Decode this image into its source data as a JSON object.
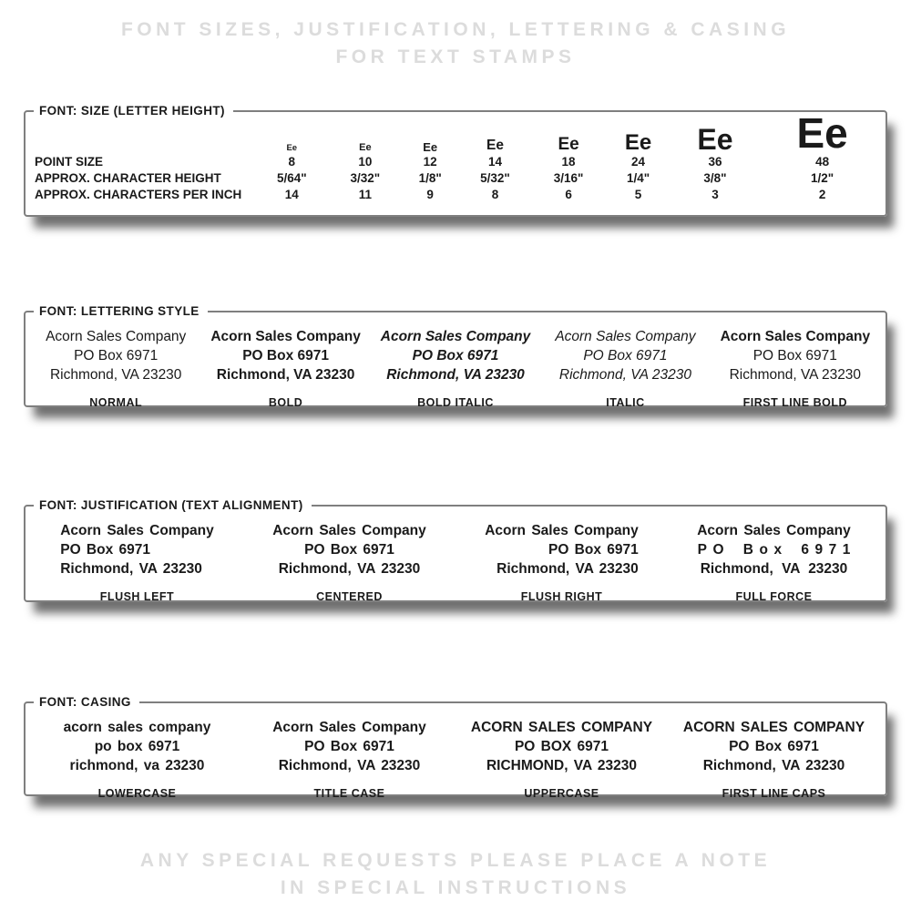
{
  "colors": {
    "muted_text": "#dcdcdc",
    "panel_border": "#7f7f7f",
    "text": "#1a1a1a",
    "shadow": "rgba(25,25,25,0.62)"
  },
  "header": {
    "line1": "FONT SIZES, JUSTIFICATION, LETTERING & CASING",
    "line2": "FOR TEXT STAMPS"
  },
  "footer": {
    "line1": "ANY SPECIAL REQUESTS PLEASE PLACE A NOTE",
    "line2": "IN SPECIAL INSTRUCTIONS"
  },
  "size_panel": {
    "legend": "FONT: SIZE (LETTER HEIGHT)",
    "sample_glyphs": "Ee",
    "row_labels": [
      "POINT SIZE",
      "APPROX. CHARACTER HEIGHT",
      "APPROX. CHARACTERS PER INCH"
    ],
    "columns": [
      {
        "point_size": "8",
        "char_height": "5/64\"",
        "chars_per_inch": "14"
      },
      {
        "point_size": "10",
        "char_height": "3/32\"",
        "chars_per_inch": "11"
      },
      {
        "point_size": "12",
        "char_height": "1/8\"",
        "chars_per_inch": "9"
      },
      {
        "point_size": "14",
        "char_height": "5/32\"",
        "chars_per_inch": "8"
      },
      {
        "point_size": "18",
        "char_height": "3/16\"",
        "chars_per_inch": "6"
      },
      {
        "point_size": "24",
        "char_height": "1/4\"",
        "chars_per_inch": "5"
      },
      {
        "point_size": "36",
        "char_height": "3/8\"",
        "chars_per_inch": "3"
      },
      {
        "point_size": "48",
        "char_height": "1/2\"",
        "chars_per_inch": "2"
      }
    ]
  },
  "lettering_panel": {
    "legend": "FONT: LETTERING STYLE",
    "address": [
      "Acorn Sales Company",
      "PO Box 6971",
      "Richmond, VA 23230"
    ],
    "styles": [
      {
        "label": "NORMAL"
      },
      {
        "label": "BOLD"
      },
      {
        "label": "BOLD ITALIC"
      },
      {
        "label": "ITALIC"
      },
      {
        "label": "FIRST LINE BOLD"
      }
    ]
  },
  "justification_panel": {
    "legend": "FONT: JUSTIFICATION (TEXT ALIGNMENT)",
    "address": [
      "Acorn Sales Company",
      "PO Box 6971",
      "Richmond, VA 23230"
    ],
    "modes": [
      {
        "label": "FLUSH LEFT"
      },
      {
        "label": "CENTERED"
      },
      {
        "label": "FLUSH RIGHT"
      },
      {
        "label": "FULL FORCE"
      }
    ]
  },
  "casing_panel": {
    "legend": "FONT: CASING",
    "samples": [
      {
        "label": "LOWERCASE",
        "lines": [
          "acorn sales company",
          "po box 6971",
          "richmond, va 23230"
        ]
      },
      {
        "label": "TITLE CASE",
        "lines": [
          "Acorn Sales Company",
          "PO Box 6971",
          "Richmond, VA 23230"
        ]
      },
      {
        "label": "UPPERCASE",
        "lines": [
          "ACORN SALES COMPANY",
          "PO BOX 6971",
          "RICHMOND, VA 23230"
        ]
      },
      {
        "label": "FIRST LINE CAPS",
        "lines": [
          "ACORN SALES COMPANY",
          "PO Box 6971",
          "Richmond, VA 23230"
        ]
      }
    ]
  }
}
